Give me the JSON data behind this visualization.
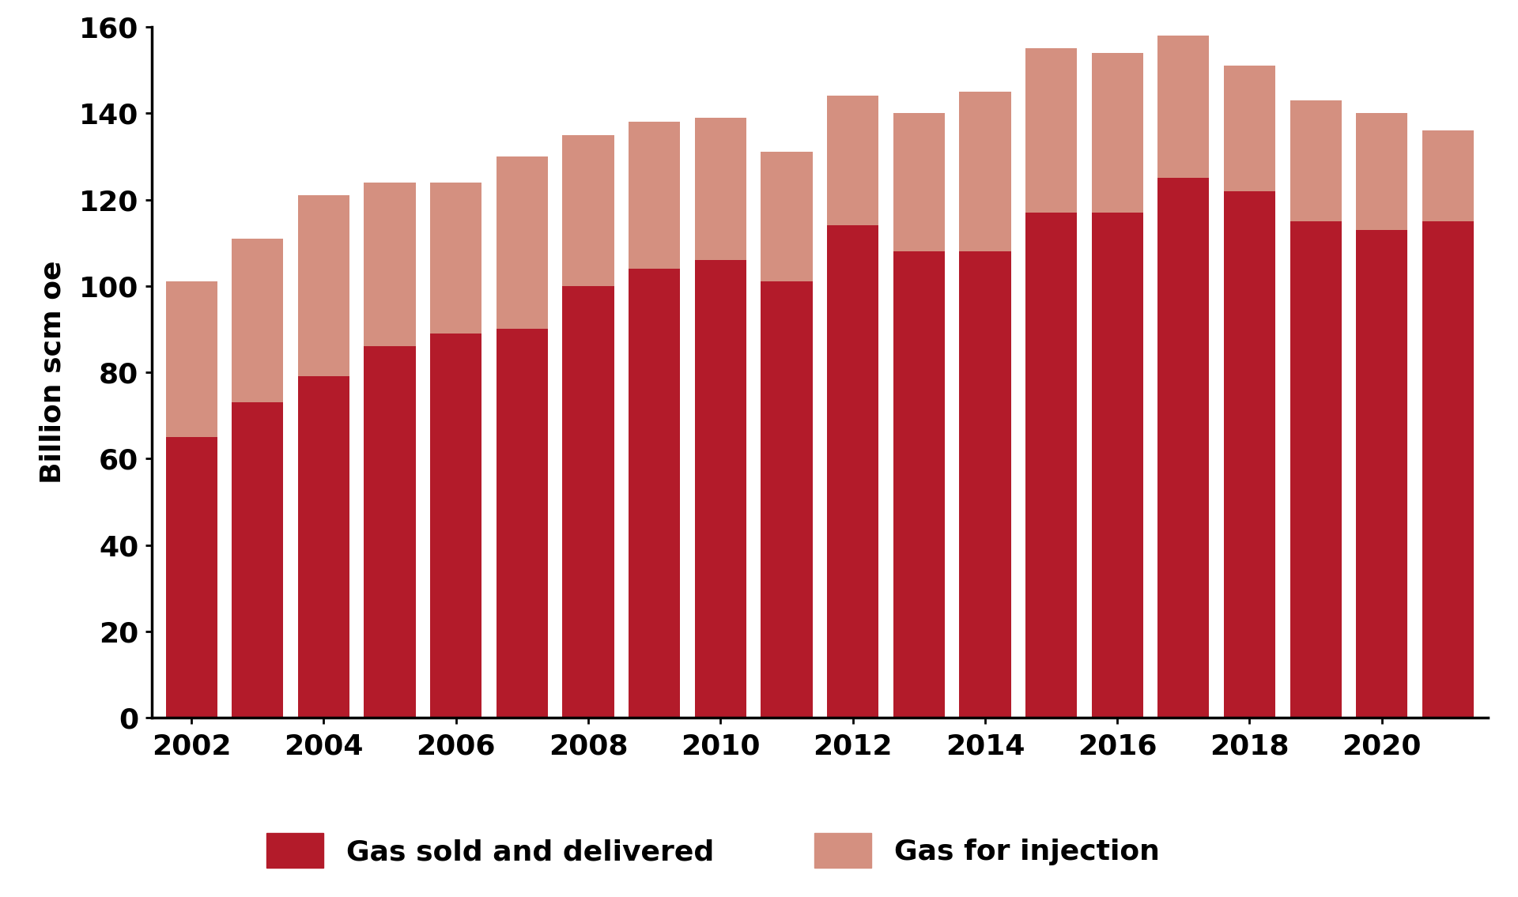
{
  "years": [
    2002,
    2003,
    2004,
    2005,
    2006,
    2007,
    2008,
    2009,
    2010,
    2011,
    2012,
    2013,
    2014,
    2015,
    2016,
    2017,
    2018,
    2019,
    2020,
    2021
  ],
  "gas_sold": [
    65,
    73,
    79,
    86,
    89,
    90,
    100,
    104,
    106,
    101,
    114,
    108,
    108,
    117,
    117,
    125,
    122,
    115,
    113,
    115
  ],
  "gas_total": [
    101,
    111,
    121,
    124,
    124,
    130,
    135,
    138,
    139,
    131,
    144,
    140,
    145,
    155,
    154,
    158,
    151,
    143,
    140,
    136
  ],
  "color_sold": "#b31b2a",
  "color_injection": "#d49080",
  "ylabel": "Billion scm oe",
  "ylim": [
    0,
    160
  ],
  "yticks": [
    0,
    20,
    40,
    60,
    80,
    100,
    120,
    140,
    160
  ],
  "xtick_labels": [
    "2002",
    "2004",
    "2006",
    "2008",
    "2010",
    "2012",
    "2014",
    "2016",
    "2018",
    "2020"
  ],
  "legend_sold": "Gas sold and delivered",
  "legend_injection": "Gas for injection",
  "bar_width": 0.78,
  "background_color": "#ffffff",
  "axis_fontsize": 26,
  "tick_fontsize": 26,
  "legend_fontsize": 26
}
